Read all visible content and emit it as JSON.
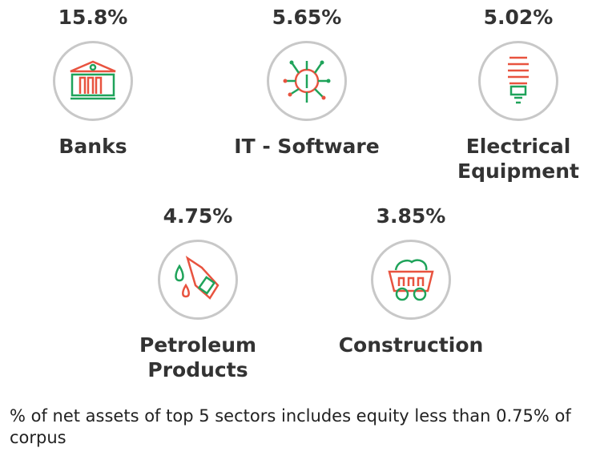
{
  "sectors": [
    {
      "percent": "15.8%",
      "label": "Banks",
      "icon": "bank-icon"
    },
    {
      "percent": "5.65%",
      "label": "IT - Software",
      "icon": "chip-icon"
    },
    {
      "percent": "5.02%",
      "label": "Electrical Equipment",
      "icon": "bulb-icon"
    },
    {
      "percent": "4.75%",
      "label": "Petroleum Products",
      "icon": "fuel-nozzle-icon"
    },
    {
      "percent": "3.85%",
      "label": "Construction",
      "icon": "mining-cart-icon"
    }
  ],
  "footnote": "% of net assets of top 5 sectors includes equity less than 0.75% of corpus",
  "colors": {
    "red": "#e8533f",
    "green": "#1fa35a",
    "circle": "#c8c8c8"
  }
}
